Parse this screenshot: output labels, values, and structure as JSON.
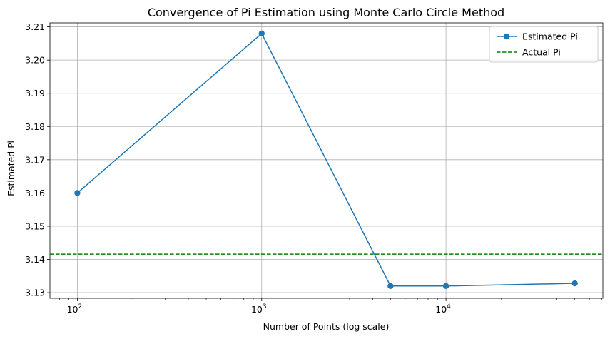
{
  "chart_data": {
    "type": "line",
    "title": "Convergence of Pi Estimation using Monte Carlo Circle Method",
    "xlabel": "Number of Points (log scale)",
    "ylabel": "Estimated Pi",
    "x_scale": "log",
    "xlim": [
      71,
      71000
    ],
    "ylim": [
      3.1283,
      3.2112
    ],
    "x_ticks": [
      {
        "value": 100,
        "base": "10",
        "exp": "2"
      },
      {
        "value": 1000,
        "base": "10",
        "exp": "3"
      },
      {
        "value": 10000,
        "base": "10",
        "exp": "4"
      }
    ],
    "y_ticks": [
      "3.13",
      "3.14",
      "3.15",
      "3.16",
      "3.17",
      "3.18",
      "3.19",
      "3.20",
      "3.21"
    ],
    "grid": true,
    "legend_position": "top-right",
    "series": [
      {
        "name": "Estimated Pi",
        "style": "line-marker",
        "color": "#1f77b4",
        "x": [
          100,
          1000,
          5000,
          10000,
          50000
        ],
        "y": [
          3.16,
          3.208,
          3.132,
          3.132,
          3.1328
        ]
      },
      {
        "name": "Actual Pi",
        "style": "dashed-hline",
        "color": "#008000",
        "y": 3.14159
      }
    ]
  }
}
